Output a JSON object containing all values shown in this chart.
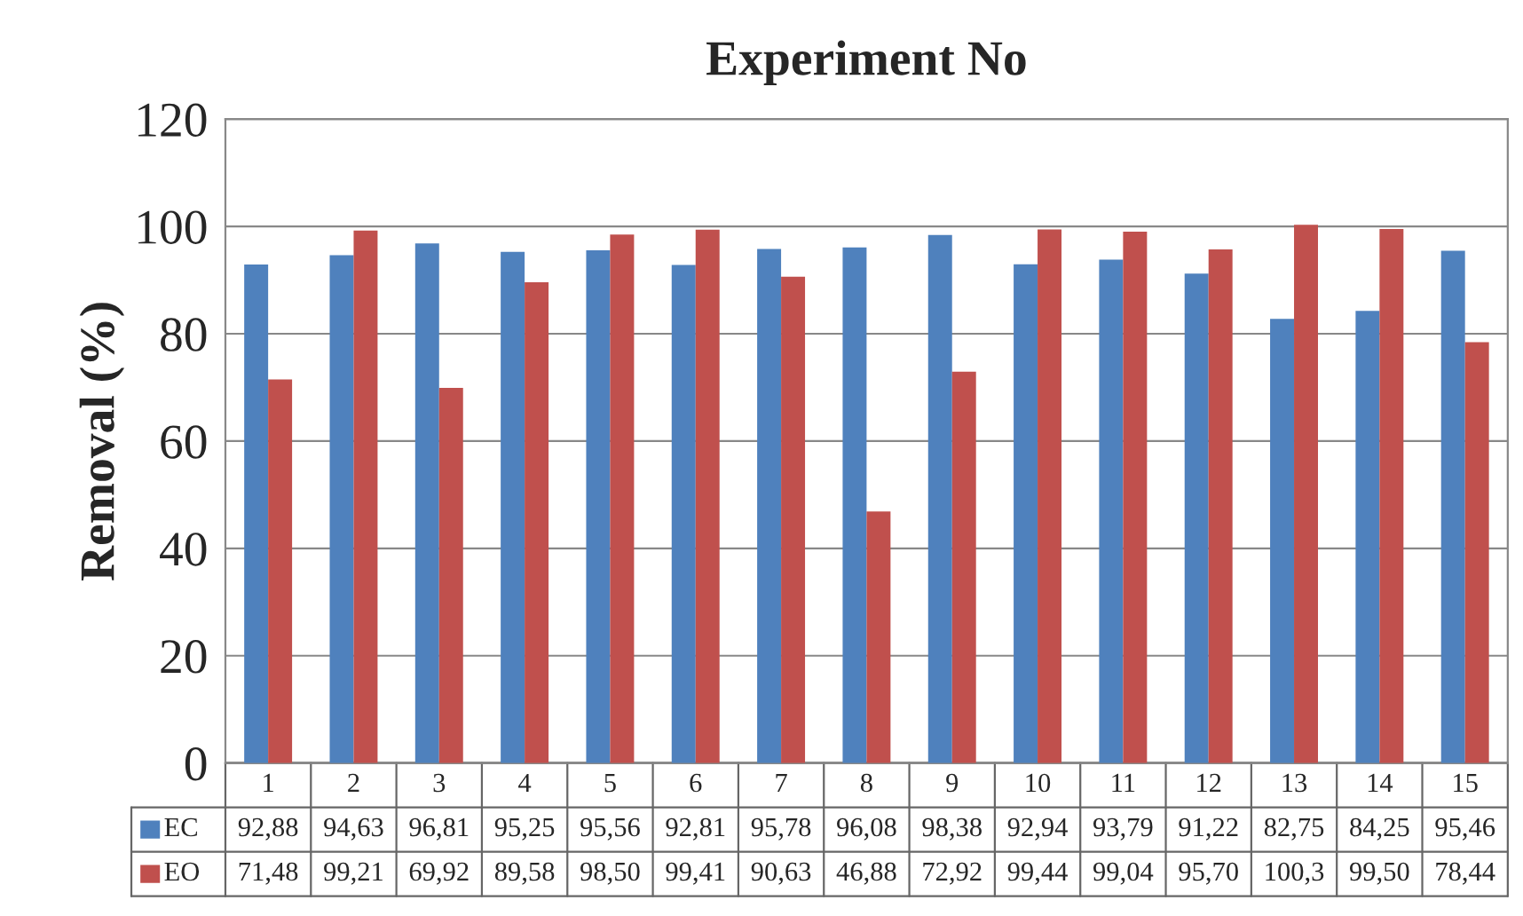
{
  "chart_data": {
    "type": "bar",
    "title": "Experiment No",
    "ylabel": "Removal (%)",
    "categories": [
      "1",
      "2",
      "3",
      "4",
      "5",
      "6",
      "7",
      "8",
      "9",
      "10",
      "11",
      "12",
      "13",
      "14",
      "15"
    ],
    "series": [
      {
        "name": "EC",
        "color": "#4f81bd",
        "values": [
          92.88,
          94.63,
          96.81,
          95.25,
          95.56,
          92.81,
          95.78,
          96.08,
          98.38,
          92.94,
          93.79,
          91.22,
          82.75,
          84.25,
          95.46
        ],
        "value_labels": [
          "92,88",
          "94,63",
          "96,81",
          "95,25",
          "95,56",
          "92,81",
          "95,78",
          "96,08",
          "98,38",
          "92,94",
          "93,79",
          "91,22",
          "82,75",
          "84,25",
          "95,46"
        ]
      },
      {
        "name": "EO",
        "color": "#c0504d",
        "values": [
          71.48,
          99.21,
          69.92,
          89.58,
          98.5,
          99.41,
          90.63,
          46.88,
          72.92,
          99.44,
          99.04,
          95.7,
          100.3,
          99.5,
          78.44
        ],
        "value_labels": [
          "71,48",
          "99,21",
          "69,92",
          "89,58",
          "98,50",
          "99,41",
          "90,63",
          "46,88",
          "72,92",
          "99,44",
          "99,04",
          "95,70",
          "100,3",
          "99,50",
          "78,44"
        ]
      }
    ],
    "ylim": [
      0,
      120
    ],
    "yticks": [
      0,
      20,
      40,
      60,
      80,
      100,
      120
    ],
    "grid": "y",
    "legend": "bottom"
  }
}
